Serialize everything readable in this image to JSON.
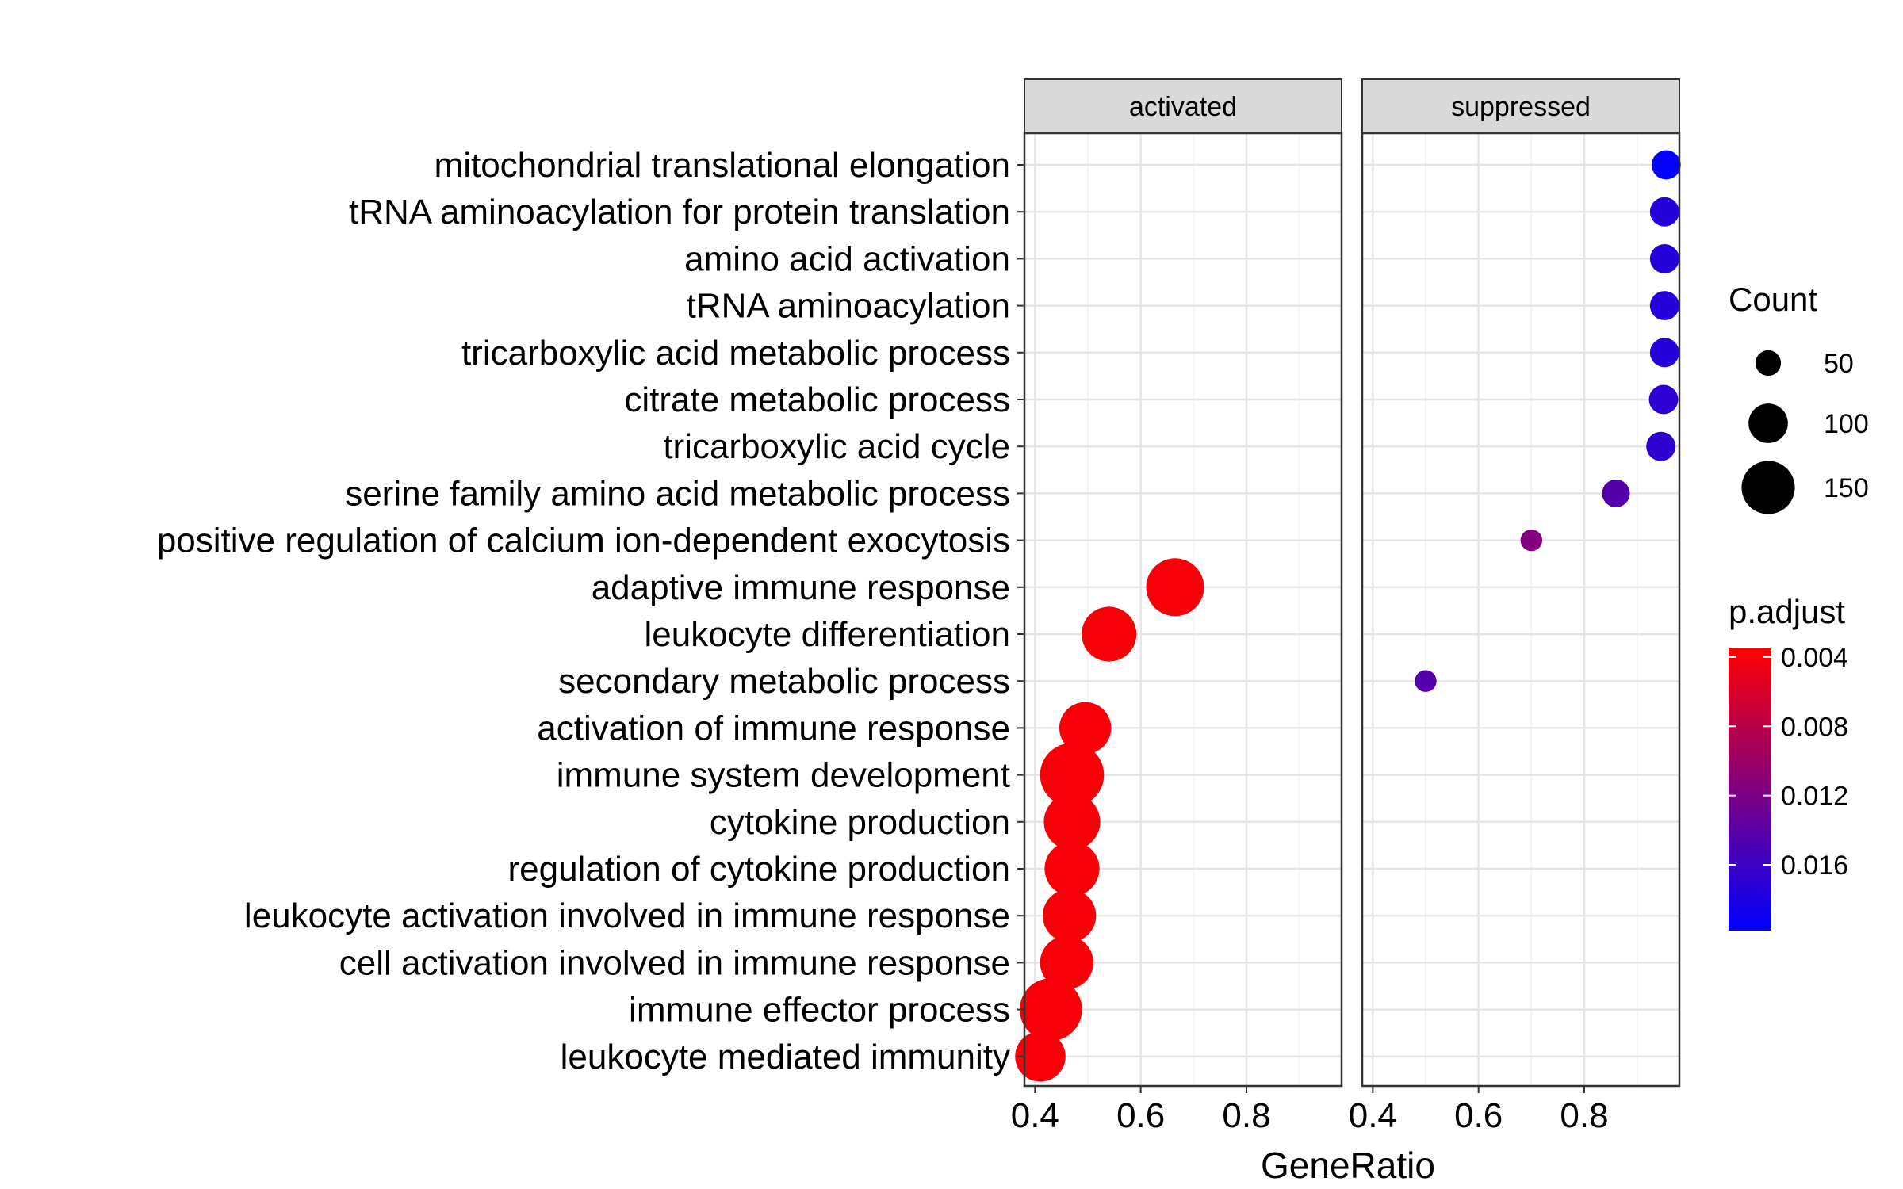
{
  "chart_data": {
    "type": "scatter",
    "subtype": "faceted dot plot",
    "xlabel": "GeneRatio",
    "ylabel": "",
    "xlim": [
      0.38,
      0.98
    ],
    "xticks": [
      0.4,
      0.6,
      0.8
    ],
    "xtick_labels": [
      "0.4",
      "0.6",
      "0.8"
    ],
    "grid": true,
    "facets": [
      {
        "name": "activated",
        "points": [
          {
            "term": "adaptive immune response",
            "x": 0.665,
            "count": 150,
            "p_adjust": 0.004
          },
          {
            "term": "leukocyte differentiation",
            "x": 0.54,
            "count": 140,
            "p_adjust": 0.004
          },
          {
            "term": "activation of immune response",
            "x": 0.495,
            "count": 130,
            "p_adjust": 0.004
          },
          {
            "term": "immune system development",
            "x": 0.47,
            "count": 170,
            "p_adjust": 0.004
          },
          {
            "term": "cytokine production",
            "x": 0.47,
            "count": 145,
            "p_adjust": 0.004
          },
          {
            "term": "regulation of cytokine production",
            "x": 0.47,
            "count": 140,
            "p_adjust": 0.004
          },
          {
            "term": "leukocyte activation involved in immune response",
            "x": 0.465,
            "count": 135,
            "p_adjust": 0.004
          },
          {
            "term": "cell activation involved in immune response",
            "x": 0.46,
            "count": 135,
            "p_adjust": 0.004
          },
          {
            "term": "immune effector process",
            "x": 0.43,
            "count": 165,
            "p_adjust": 0.004
          },
          {
            "term": "leukocyte mediated immunity",
            "x": 0.41,
            "count": 125,
            "p_adjust": 0.004
          }
        ]
      },
      {
        "name": "suppressed",
        "points": [
          {
            "term": "mitochondrial translational elongation",
            "x": 0.955,
            "count": 55,
            "p_adjust": 0.0195
          },
          {
            "term": "tRNA aminoacylation for protein translation",
            "x": 0.952,
            "count": 55,
            "p_adjust": 0.0175
          },
          {
            "term": "amino acid activation",
            "x": 0.952,
            "count": 55,
            "p_adjust": 0.0175
          },
          {
            "term": "tRNA aminoacylation",
            "x": 0.952,
            "count": 55,
            "p_adjust": 0.0175
          },
          {
            "term": "tricarboxylic acid metabolic process",
            "x": 0.952,
            "count": 55,
            "p_adjust": 0.0175
          },
          {
            "term": "citrate metabolic process",
            "x": 0.95,
            "count": 55,
            "p_adjust": 0.017
          },
          {
            "term": "tricarboxylic acid cycle",
            "x": 0.945,
            "count": 55,
            "p_adjust": 0.0168
          },
          {
            "term": "serine family amino acid metabolic process",
            "x": 0.86,
            "count": 50,
            "p_adjust": 0.0145
          },
          {
            "term": "positive regulation of calcium ion-dependent exocytosis",
            "x": 0.7,
            "count": 30,
            "p_adjust": 0.0115
          },
          {
            "term": "secondary metabolic process",
            "x": 0.5,
            "count": 30,
            "p_adjust": 0.0145
          }
        ]
      }
    ],
    "terms": [
      "mitochondrial translational elongation",
      "tRNA aminoacylation for protein translation",
      "amino acid activation",
      "tRNA aminoacylation",
      "tricarboxylic acid metabolic process",
      "citrate metabolic process",
      "tricarboxylic acid cycle",
      "serine family amino acid metabolic process",
      "positive regulation of calcium ion-dependent exocytosis",
      "adaptive immune response",
      "leukocyte differentiation",
      "secondary metabolic process",
      "activation of immune response",
      "immune system development",
      "cytokine production",
      "regulation of cytokine production",
      "leukocyte activation involved in immune response",
      "cell activation involved in immune response",
      "immune effector process",
      "leukocyte mediated immunity"
    ],
    "size_legend": {
      "title": "Count",
      "entries": [
        {
          "label": "50",
          "value": 50
        },
        {
          "label": "100",
          "value": 100
        },
        {
          "label": "150",
          "value": 150
        }
      ]
    },
    "color_legend": {
      "title": "p.adjust",
      "tick_labels": [
        "0.004",
        "0.008",
        "0.012",
        "0.016"
      ],
      "tick_values": [
        0.004,
        0.008,
        0.012,
        0.016
      ],
      "range": [
        0.0035,
        0.0198
      ],
      "low_color": "#ff0000",
      "high_color": "#0000ff",
      "legend_position": "right"
    }
  }
}
